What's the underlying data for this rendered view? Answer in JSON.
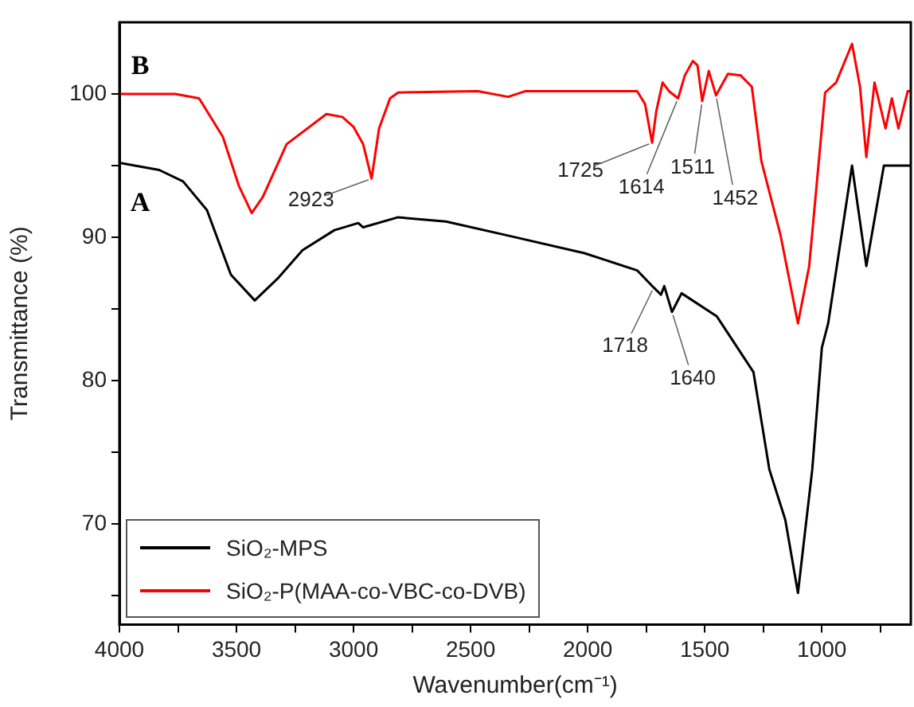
{
  "chart_data": {
    "type": "line",
    "xlabel": "Wavenumber(cm⁻¹)",
    "ylabel": "Transmittance (%)",
    "xlim": [
      4000,
      620
    ],
    "ylim": [
      63,
      105
    ],
    "xticks": [
      4000,
      {
        "value": 3750,
        "label": null
      },
      3500,
      {
        "value": 3250,
        "label": null
      },
      3000,
      {
        "value": 2750,
        "label": null
      },
      2500,
      {
        "value": 2250,
        "label": null
      },
      2000,
      {
        "value": 1750,
        "label": null
      },
      1500,
      {
        "value": 1250,
        "label": null
      },
      1000,
      {
        "value": 750,
        "label": null
      }
    ],
    "yticks": [
      {
        "value": 65,
        "label": null
      },
      70,
      {
        "value": 75,
        "label": null
      },
      80,
      {
        "value": 85,
        "label": null
      },
      90,
      {
        "value": 95,
        "label": null
      },
      100
    ],
    "grid": false,
    "legend": "bottom left",
    "marker": "none",
    "line_style": "solid",
    "series": [
      {
        "name": "SiO₂-MPS",
        "color": "#000000",
        "x": [
          4000,
          3830,
          3728,
          3626,
          3524,
          3422,
          3320,
          3218,
          3082,
          2980,
          2959,
          2810,
          2605,
          2333,
          2014,
          1789,
          1718,
          1687,
          1673,
          1640,
          1599,
          1449,
          1292,
          1224,
          1156,
          1102,
          1041,
          1000,
          973,
          871,
          810,
          735,
          620
        ],
        "values": [
          95.2,
          94.7,
          93.9,
          91.9,
          87.4,
          85.6,
          87.2,
          89.1,
          90.5,
          91.0,
          90.7,
          91.4,
          91.1,
          90.1,
          88.9,
          87.7,
          86.5,
          86.0,
          86.6,
          84.8,
          86.1,
          84.5,
          80.6,
          73.8,
          70.3,
          65.2,
          73.8,
          82.3,
          84.0,
          95.0,
          88.0,
          95.0,
          95.0
        ]
      },
      {
        "name": "SiO₂-P(MAA-co-VBC-co-DVB)",
        "color": "#ff0000",
        "x": [
          4000,
          3762,
          3660,
          3558,
          3490,
          3435,
          3388,
          3286,
          3116,
          3048,
          3000,
          2959,
          2923,
          2891,
          2844,
          2810,
          2469,
          2340,
          2265,
          1789,
          1755,
          1725,
          1707,
          1680,
          1653,
          1614,
          1585,
          1551,
          1531,
          1511,
          1483,
          1452,
          1401,
          1347,
          1299,
          1258,
          1177,
          1102,
          1054,
          986,
          939,
          871,
          837,
          810,
          775,
          728,
          701,
          673,
          633,
          620
        ],
        "values": [
          100.0,
          100.0,
          99.7,
          97.0,
          93.6,
          91.7,
          92.8,
          96.5,
          98.6,
          98.4,
          97.7,
          96.5,
          94.1,
          97.6,
          99.7,
          100.1,
          100.2,
          99.8,
          100.2,
          100.2,
          99.3,
          96.6,
          98.8,
          100.8,
          100.2,
          99.7,
          101.3,
          102.3,
          102.0,
          99.5,
          101.6,
          99.9,
          101.4,
          101.3,
          100.5,
          95.3,
          90.2,
          84.0,
          88.0,
          100.1,
          100.8,
          103.5,
          100.5,
          95.6,
          100.8,
          97.6,
          99.7,
          97.6,
          100.2,
          100.2
        ]
      }
    ],
    "annotations": [
      "B",
      "A",
      {
        "text": "2923",
        "x": 2923,
        "y": 94.1
      },
      {
        "text": "1725",
        "x": 1725,
        "y": 96.6
      },
      {
        "text": "1614",
        "x": 1614,
        "y": 99.7
      },
      {
        "text": "1511",
        "x": 1511,
        "y": 99.5
      },
      {
        "text": "1452",
        "x": 1452,
        "y": 99.9
      },
      {
        "text": "1718",
        "x": 1718,
        "y": 86.5
      },
      {
        "text": "1640",
        "x": 1640,
        "y": 84.8
      }
    ]
  }
}
